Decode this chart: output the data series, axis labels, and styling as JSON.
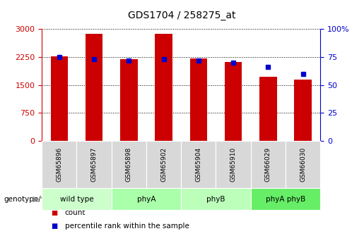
{
  "title": "GDS1704 / 258275_at",
  "samples": [
    "GSM65896",
    "GSM65897",
    "GSM65898",
    "GSM65902",
    "GSM65904",
    "GSM65910",
    "GSM66029",
    "GSM66030"
  ],
  "counts": [
    2270,
    2870,
    2200,
    2880,
    2210,
    2120,
    1730,
    1640
  ],
  "percentiles": [
    75,
    73,
    72,
    73,
    72,
    70,
    66,
    60
  ],
  "groups": [
    {
      "label": "wild type",
      "indices": [
        0,
        1
      ],
      "color": "#ccffcc"
    },
    {
      "label": "phyA",
      "indices": [
        2,
        3
      ],
      "color": "#aaffaa"
    },
    {
      "label": "phyB",
      "indices": [
        4,
        5
      ],
      "color": "#bbffbb"
    },
    {
      "label": "phyA phyB",
      "indices": [
        6,
        7
      ],
      "color": "#66ee66"
    }
  ],
  "bar_color": "#cc0000",
  "dot_color": "#0000cc",
  "left_ylim": [
    0,
    3000
  ],
  "left_yticks": [
    0,
    750,
    1500,
    2250,
    3000
  ],
  "right_ylim": [
    0,
    100
  ],
  "right_yticks": [
    0,
    25,
    50,
    75,
    100
  ],
  "grid_color": "black",
  "bg_color": "white",
  "plot_bg": "white",
  "bar_width": 0.5,
  "title_fontsize": 10,
  "tick_fontsize": 8,
  "label_fontsize": 8
}
